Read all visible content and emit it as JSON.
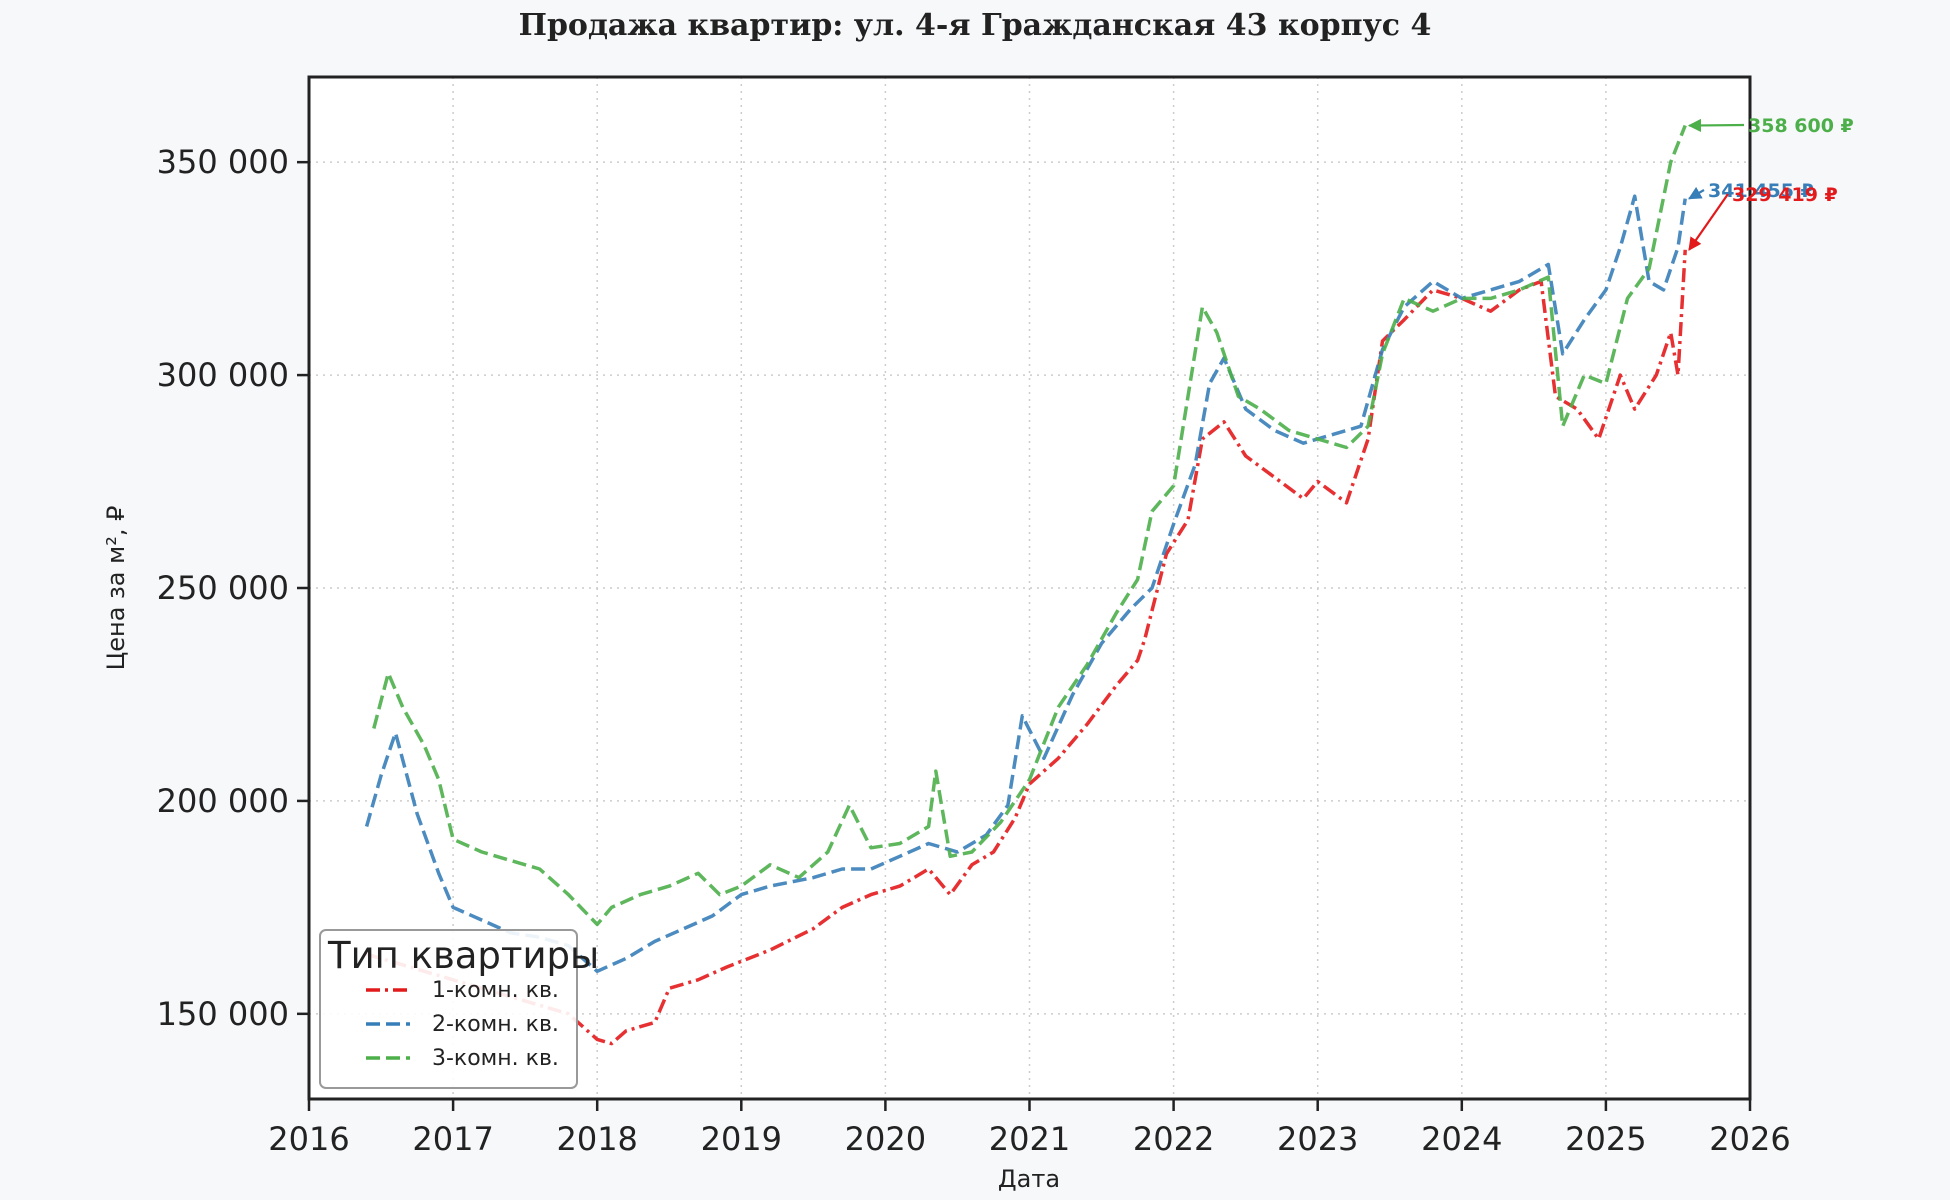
{
  "chart_data": {
    "type": "line",
    "title": "Продажа квартир: ул. 4-я Гражданская 43 корпус 4",
    "xlabel": "Дата",
    "ylabel": "Цена за м², ₽",
    "xlim": [
      2016,
      2026
    ],
    "ylim": [
      130000,
      370000
    ],
    "x_ticks": [
      2016,
      2017,
      2018,
      2019,
      2020,
      2021,
      2022,
      2023,
      2024,
      2025,
      2026
    ],
    "y_ticks": [
      150000,
      200000,
      250000,
      300000,
      350000
    ],
    "y_tick_labels": [
      "150 000",
      "200 000",
      "250 000",
      "300 000",
      "350 000"
    ],
    "x_tick_labels": [
      "2016",
      "2017",
      "2018",
      "2019",
      "2020",
      "2021",
      "2022",
      "2023",
      "2024",
      "2025",
      "2026"
    ],
    "grid": true,
    "legend": {
      "title": "Тип квартиры",
      "placement": "lower-left"
    },
    "series": [
      {
        "name": "1-комн. кв.",
        "color": "#e31a1c",
        "style": "dashdot",
        "x": [
          2016.4,
          2016.6,
          2016.8,
          2017.0,
          2017.2,
          2017.4,
          2017.6,
          2017.8,
          2017.9,
          2018.0,
          2018.1,
          2018.2,
          2018.4,
          2018.5,
          2018.7,
          2018.9,
          2019.2,
          2019.5,
          2019.7,
          2019.9,
          2020.1,
          2020.3,
          2020.45,
          2020.6,
          2020.75,
          2020.9,
          2021.0,
          2021.2,
          2021.4,
          2021.6,
          2021.75,
          2021.8,
          2021.95,
          2022.1,
          2022.2,
          2022.35,
          2022.5,
          2022.7,
          2022.9,
          2023.0,
          2023.2,
          2023.35,
          2023.45,
          2023.6,
          2023.8,
          2024.0,
          2024.2,
          2024.4,
          2024.55,
          2024.65,
          2024.8,
          2024.95,
          2025.1,
          2025.2,
          2025.35,
          2025.45,
          2025.5,
          2025.55
        ],
        "y": [
          164000,
          162000,
          160000,
          158000,
          156000,
          154000,
          152000,
          150000,
          147000,
          144000,
          143000,
          146000,
          148000,
          156000,
          158000,
          161000,
          165000,
          170000,
          175000,
          178000,
          180000,
          184000,
          178000,
          185000,
          188000,
          196000,
          204000,
          210000,
          218000,
          227000,
          233000,
          238000,
          258000,
          266000,
          285000,
          289000,
          281000,
          276000,
          271000,
          275000,
          270000,
          285000,
          308000,
          313000,
          320000,
          318000,
          315000,
          320000,
          322000,
          295000,
          292000,
          285000,
          300000,
          292000,
          300000,
          310000,
          300000,
          329419
        ]
      },
      {
        "name": "2-комн. кв.",
        "color": "#377eb8",
        "style": "dashed",
        "x": [
          2016.4,
          2016.5,
          2016.6,
          2016.75,
          2016.9,
          2017.0,
          2017.2,
          2017.4,
          2017.6,
          2017.8,
          2018.0,
          2018.2,
          2018.4,
          2018.6,
          2018.8,
          2019.0,
          2019.2,
          2019.5,
          2019.7,
          2019.9,
          2020.1,
          2020.3,
          2020.5,
          2020.7,
          2020.85,
          2020.95,
          2021.1,
          2021.3,
          2021.5,
          2021.7,
          2021.85,
          2022.0,
          2022.15,
          2022.25,
          2022.35,
          2022.5,
          2022.7,
          2022.9,
          2023.1,
          2023.3,
          2023.45,
          2023.6,
          2023.8,
          2024.0,
          2024.2,
          2024.4,
          2024.6,
          2024.7,
          2024.85,
          2025.0,
          2025.1,
          2025.2,
          2025.3,
          2025.4,
          2025.5,
          2025.55
        ],
        "y": [
          194000,
          206000,
          216000,
          197000,
          183000,
          175000,
          172000,
          169000,
          168000,
          166000,
          160000,
          163000,
          167000,
          170000,
          173000,
          178000,
          180000,
          182000,
          184000,
          184000,
          187000,
          190000,
          188000,
          192000,
          199000,
          220000,
          210000,
          225000,
          237000,
          245000,
          250000,
          265000,
          279000,
          298000,
          304000,
          292000,
          287000,
          284000,
          286000,
          288000,
          306000,
          316000,
          322000,
          318000,
          320000,
          322000,
          326000,
          305000,
          313000,
          320000,
          330000,
          342000,
          322000,
          320000,
          330000,
          341455
        ]
      },
      {
        "name": "3-комн. кв.",
        "color": "#4daf4a",
        "style": "dashed",
        "x": [
          2016.45,
          2016.55,
          2016.65,
          2016.8,
          2016.9,
          2017.0,
          2017.2,
          2017.4,
          2017.6,
          2017.8,
          2018.0,
          2018.1,
          2018.3,
          2018.5,
          2018.7,
          2018.85,
          2019.0,
          2019.2,
          2019.4,
          2019.6,
          2019.75,
          2019.9,
          2020.1,
          2020.3,
          2020.35,
          2020.45,
          2020.6,
          2020.8,
          2020.9,
          2021.0,
          2021.2,
          2021.4,
          2021.6,
          2021.75,
          2021.85,
          2022.0,
          2022.2,
          2022.3,
          2022.45,
          2022.6,
          2022.8,
          2023.0,
          2023.2,
          2023.35,
          2023.45,
          2023.6,
          2023.8,
          2024.0,
          2024.2,
          2024.4,
          2024.6,
          2024.7,
          2024.85,
          2025.0,
          2025.15,
          2025.3,
          2025.45,
          2025.55
        ],
        "y": [
          217000,
          230000,
          222000,
          213000,
          205000,
          191000,
          188000,
          186000,
          184000,
          178000,
          171000,
          175000,
          178000,
          180000,
          183000,
          178000,
          180000,
          185000,
          182000,
          188000,
          199000,
          189000,
          190000,
          194000,
          207000,
          187000,
          188000,
          195000,
          200000,
          205000,
          222000,
          232000,
          244000,
          252000,
          268000,
          274000,
          316000,
          310000,
          295000,
          292000,
          287000,
          285000,
          283000,
          288000,
          305000,
          318000,
          315000,
          318000,
          318000,
          320000,
          323000,
          288000,
          300000,
          298000,
          318000,
          325000,
          350000,
          358600
        ]
      }
    ],
    "annotations": [
      {
        "series": "3-комн. кв.",
        "label": "358 600 ₽",
        "x": 2025.55,
        "y": 358600,
        "color": "#4daf4a"
      },
      {
        "series": "2-комн. кв.",
        "label": "341 455 ₽",
        "x": 2025.55,
        "y": 341455,
        "color": "#377eb8"
      },
      {
        "series": "1-комн. кв.",
        "label": "329 419 ₽",
        "x": 2025.55,
        "y": 329419,
        "color": "#e31a1c"
      }
    ]
  }
}
